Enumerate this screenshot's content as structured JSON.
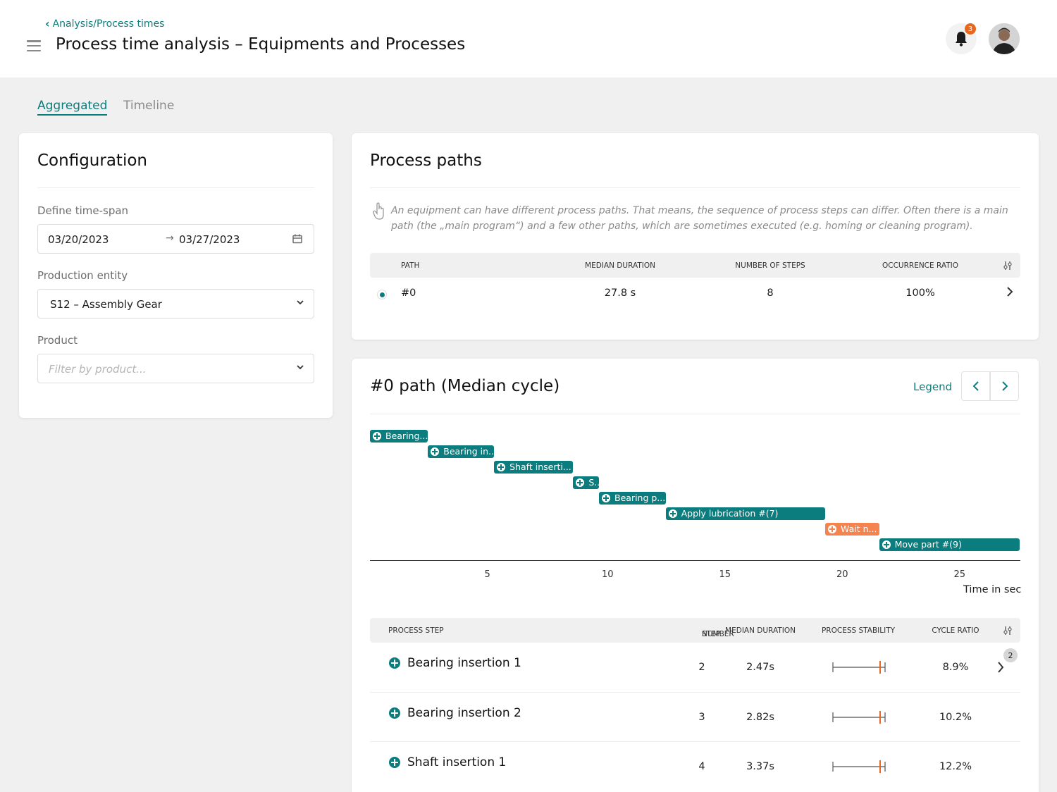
{
  "header": {
    "breadcrumb": "Analysis/Process times",
    "title": "Process time analysis – Equipments and Processes",
    "notification_count": "3"
  },
  "tabs": [
    {
      "label": "Aggregated",
      "active": true
    },
    {
      "label": "Timeline",
      "active": false
    }
  ],
  "configuration": {
    "title": "Configuration",
    "time_span_label": "Define time-span",
    "date_from": "03/20/2023",
    "date_to": "03/27/2023",
    "entity_label": "Production entity",
    "entity_value": "S12 – Assembly Gear",
    "product_label": "Product",
    "product_placeholder": "Filter by product..."
  },
  "process_paths": {
    "title": "Process paths",
    "info": "An equipment can have different process paths. That means, the sequence of process steps can differ. Often there is a main path (the „main program“) and a few other paths, which are sometimes executed (e.g. homing or cleaning program).",
    "columns": [
      "PATH",
      "MEDIAN DURATION",
      "NUMBER OF STEPS",
      "OCCURRENCE RATIO"
    ],
    "rows": [
      {
        "path": "#0",
        "median_duration": "27.8 s",
        "steps": "8",
        "ratio": "100%"
      }
    ]
  },
  "median_cycle": {
    "title": "#0 path (Median cycle)",
    "legend_label": "Legend",
    "x_axis_label": "Time in sec",
    "x_ticks": [
      "5",
      "10",
      "15",
      "20",
      "25"
    ],
    "bars": [
      {
        "label": "Bearing...",
        "start": 0,
        "end": 2.47,
        "kind": "step"
      },
      {
        "label": "Bearing in...",
        "start": 2.47,
        "end": 5.29,
        "kind": "step"
      },
      {
        "label": "Shaft inserti...",
        "start": 5.29,
        "end": 8.66,
        "kind": "step"
      },
      {
        "label": "S..",
        "start": 8.66,
        "end": 9.76,
        "kind": "step"
      },
      {
        "label": "Bearing p...",
        "start": 9.76,
        "end": 12.6,
        "kind": "step"
      },
      {
        "label": "Apply lubrication #(7)",
        "start": 12.6,
        "end": 19.4,
        "kind": "step"
      },
      {
        "label": "Wait n...",
        "start": 19.4,
        "end": 21.7,
        "kind": "wait"
      },
      {
        "label": "Move part #(9)",
        "start": 21.7,
        "end": 27.7,
        "kind": "step"
      }
    ],
    "step_columns": {
      "process_step": "PROCESS STEP",
      "step_number_1": "STEP",
      "step_number_2": "NUMBER",
      "median_duration": "MEDIAN DURATION",
      "process_stability": "PROCESS STABILITY",
      "cycle_ratio": "CYCLE RATIO"
    },
    "page_badge": "2",
    "steps": [
      {
        "name": "Bearing insertion 1",
        "number": "2",
        "median": "2.47s",
        "ratio": "8.9%"
      },
      {
        "name": "Bearing insertion 2",
        "number": "3",
        "median": "2.82s",
        "ratio": "10.2%"
      },
      {
        "name": "Shaft insertion 1",
        "number": "4",
        "median": "3.37s",
        "ratio": "12.2%"
      }
    ]
  },
  "colors": {
    "accent": "#0b7d7e",
    "wait": "#f4834e",
    "badge": "#e8671f"
  }
}
